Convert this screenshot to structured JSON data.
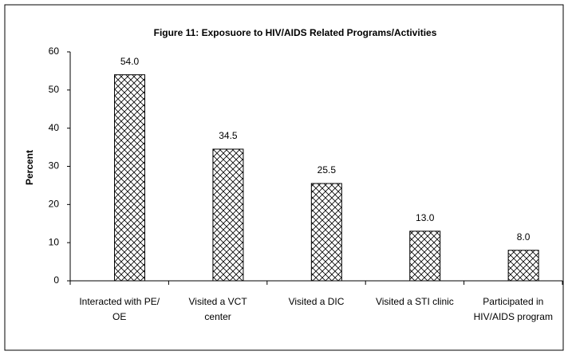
{
  "chart_data": {
    "type": "bar",
    "title": "Figure 11: Exposuore to HIV/AIDS Related Programs/Activities",
    "y_label": "Percent",
    "categories": [
      "Interacted with PE/ OE",
      "Visited a VCT center",
      "Visited a DIC",
      "Visited a STI clinic",
      "Participated in HIV/AIDS program"
    ],
    "values": [
      54.0,
      34.5,
      25.5,
      13.0,
      8.0
    ],
    "value_labels": [
      "54.0",
      "34.5",
      "25.5",
      "13.0",
      "8.0"
    ],
    "color": "#000000",
    "pattern": "crosshatch",
    "ylim": [
      0,
      60
    ],
    "yticks": [
      0,
      10,
      20,
      30,
      40,
      50,
      60
    ],
    "grid": false
  }
}
